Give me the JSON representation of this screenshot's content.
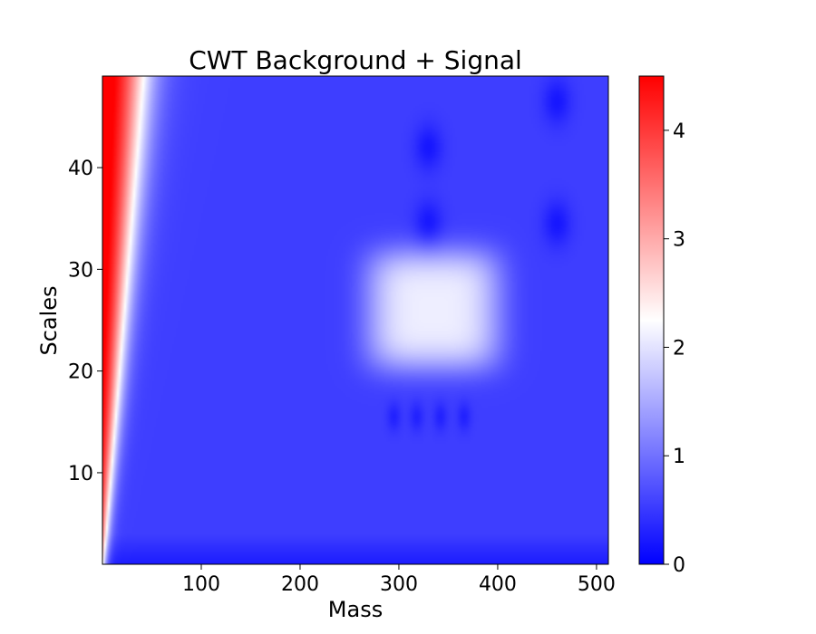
{
  "chart_data": {
    "type": "heatmap",
    "title": "CWT Background + Signal",
    "xlabel": "Mass",
    "ylabel": "Scales",
    "xlim": [
      0,
      512
    ],
    "ylim": [
      1,
      49
    ],
    "x_ticks": [
      100,
      200,
      300,
      400,
      500
    ],
    "y_ticks": [
      10,
      20,
      30,
      40
    ],
    "colorbar": {
      "colormap": "bwr",
      "range": [
        0,
        4.5
      ],
      "ticks": [
        0,
        1,
        2,
        3,
        4
      ]
    },
    "features": [
      {
        "description": "background ridge",
        "x_at_min_scale": 0,
        "x_at_max_scale": 60,
        "peak_value": 4.5
      },
      {
        "description": "signal blob",
        "x_range": [
          270,
          400
        ],
        "scale_range": [
          20,
          32
        ],
        "peak_value": 2.1
      },
      {
        "description": "local minima row",
        "x_values": [
          295,
          318,
          342,
          366
        ],
        "scale": 15.5
      },
      {
        "description": "local minima",
        "points": [
          [
            330,
            42
          ],
          [
            330,
            34.5
          ],
          [
            460,
            46.5
          ],
          [
            460,
            34.5
          ]
        ]
      }
    ]
  }
}
